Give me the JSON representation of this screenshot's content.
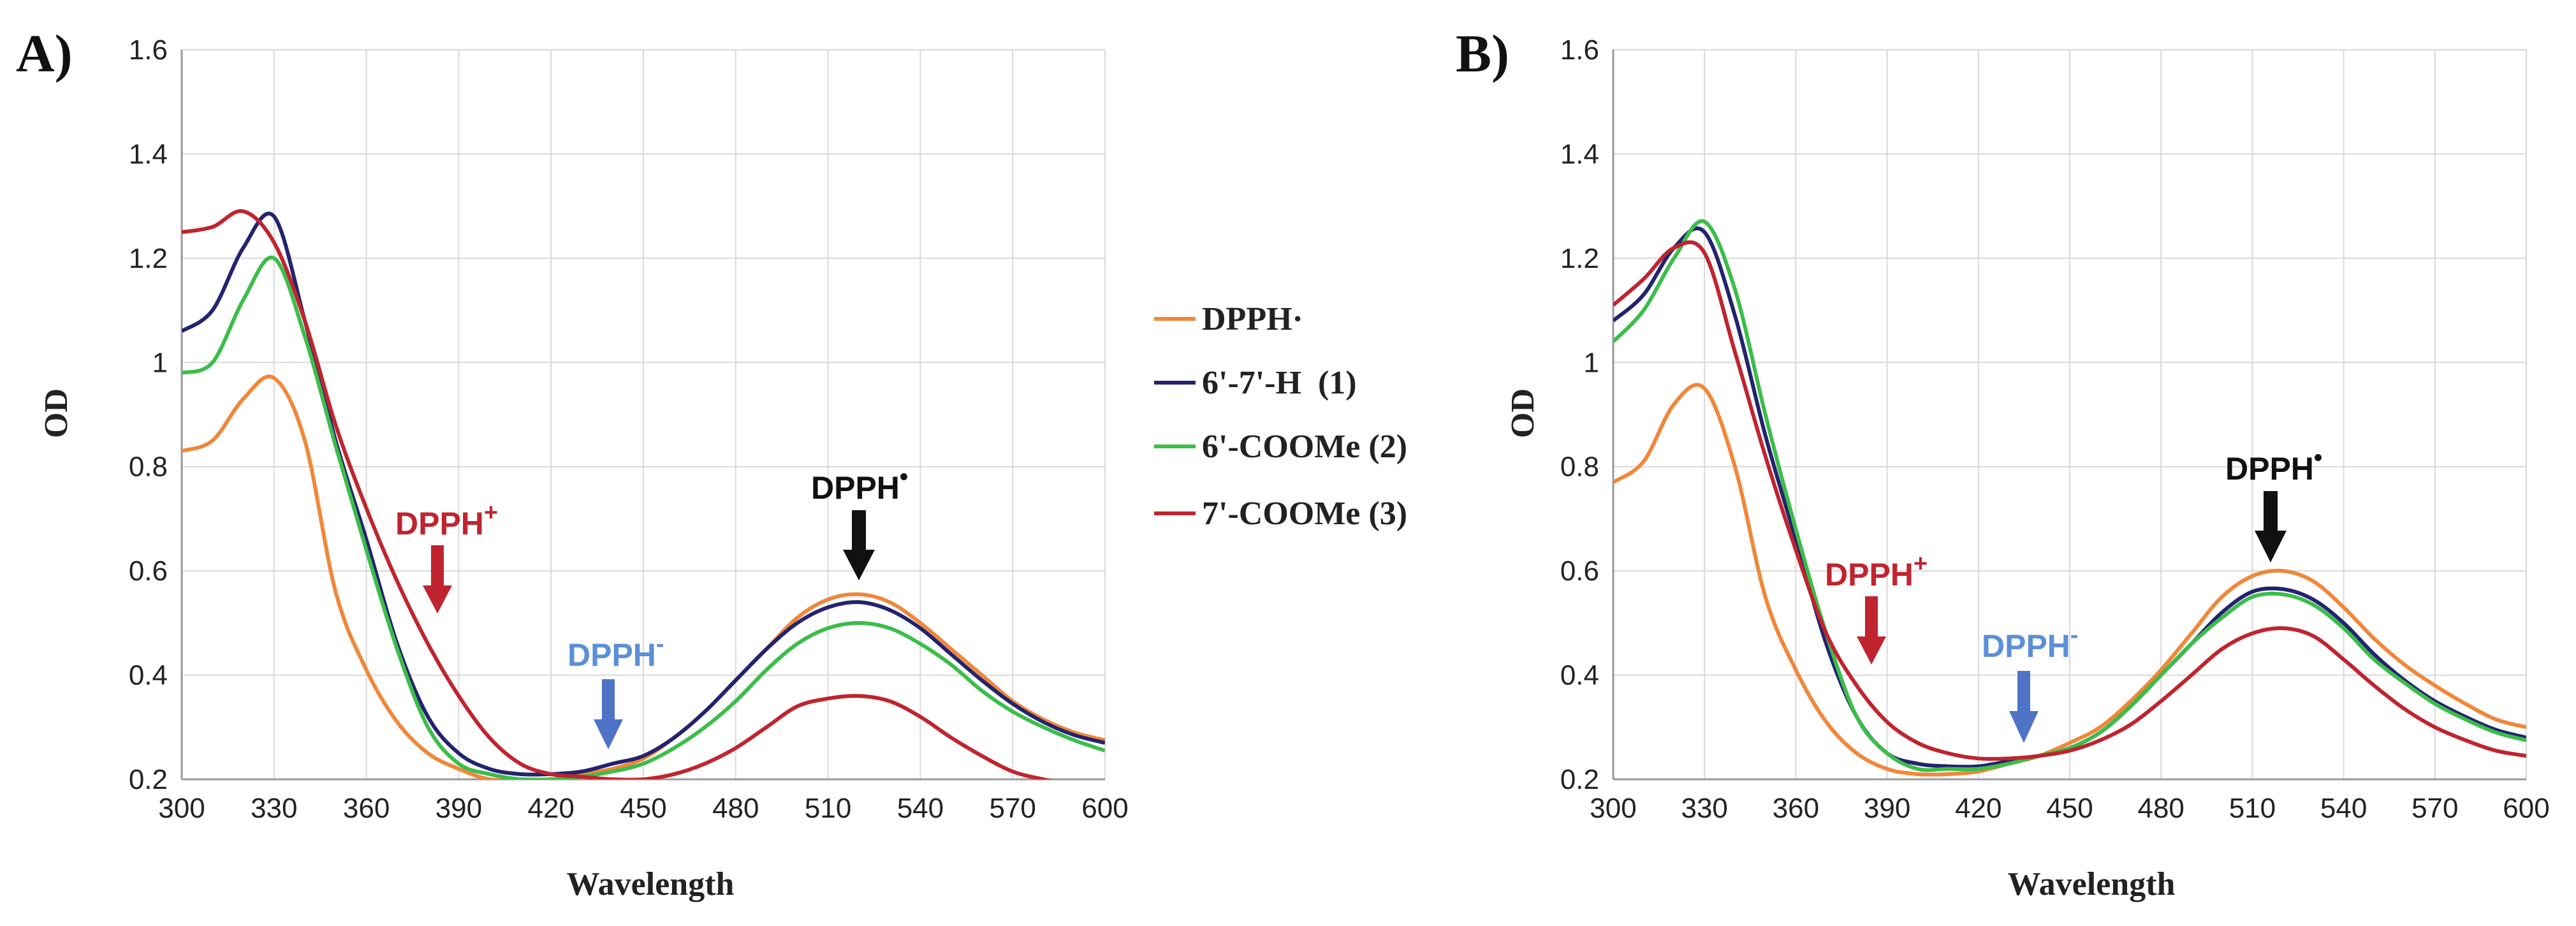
{
  "chart_data": [
    {
      "panel": "A)",
      "type": "line",
      "xlabel": "Wavelength",
      "ylabel": "OD",
      "xlim": [
        300,
        600
      ],
      "ylim": [
        0.2,
        1.6
      ],
      "xticks": [
        300,
        330,
        360,
        390,
        420,
        450,
        480,
        510,
        540,
        570,
        600
      ],
      "yticks": [
        0.2,
        0.4,
        0.6,
        0.8,
        1,
        1.2,
        1.4,
        1.6
      ],
      "ytick_labels": [
        "0.2",
        "0.4",
        "0.6",
        "0.8",
        "1",
        "1.2",
        "1.4",
        "1.6"
      ],
      "grid": true,
      "series": [
        {
          "name": "DPPH·",
          "color": "#f0873a",
          "x": [
            300,
            310,
            320,
            330,
            340,
            350,
            360,
            370,
            380,
            390,
            400,
            410,
            420,
            430,
            440,
            450,
            460,
            470,
            480,
            490,
            500,
            510,
            520,
            530,
            540,
            550,
            560,
            570,
            580,
            590,
            600
          ],
          "y": [
            0.83,
            0.85,
            0.93,
            0.97,
            0.85,
            0.56,
            0.41,
            0.31,
            0.25,
            0.22,
            0.2,
            0.2,
            0.2,
            0.21,
            0.22,
            0.24,
            0.28,
            0.33,
            0.39,
            0.45,
            0.51,
            0.545,
            0.555,
            0.54,
            0.5,
            0.45,
            0.4,
            0.35,
            0.315,
            0.29,
            0.275
          ]
        },
        {
          "name": "6'-7'-H (1)",
          "color": "#23236e",
          "x": [
            300,
            310,
            320,
            330,
            340,
            350,
            360,
            370,
            380,
            390,
            400,
            410,
            420,
            430,
            440,
            450,
            460,
            470,
            480,
            490,
            500,
            510,
            520,
            530,
            540,
            550,
            560,
            570,
            580,
            590,
            600
          ],
          "y": [
            1.06,
            1.1,
            1.22,
            1.28,
            1.08,
            0.85,
            0.66,
            0.46,
            0.32,
            0.25,
            0.22,
            0.21,
            0.21,
            0.215,
            0.23,
            0.245,
            0.28,
            0.33,
            0.39,
            0.45,
            0.5,
            0.53,
            0.54,
            0.525,
            0.49,
            0.44,
            0.39,
            0.345,
            0.31,
            0.285,
            0.27
          ]
        },
        {
          "name": "6'-COOMe (2)",
          "color": "#3cbd4a",
          "x": [
            300,
            310,
            320,
            330,
            340,
            350,
            360,
            370,
            380,
            390,
            400,
            410,
            420,
            430,
            440,
            450,
            460,
            470,
            480,
            490,
            500,
            510,
            520,
            530,
            540,
            550,
            560,
            570,
            580,
            590,
            600
          ],
          "y": [
            0.98,
            1.0,
            1.12,
            1.2,
            1.05,
            0.84,
            0.64,
            0.45,
            0.3,
            0.23,
            0.21,
            0.2,
            0.2,
            0.205,
            0.215,
            0.23,
            0.26,
            0.3,
            0.35,
            0.41,
            0.46,
            0.49,
            0.5,
            0.49,
            0.46,
            0.42,
            0.37,
            0.33,
            0.3,
            0.275,
            0.255
          ]
        },
        {
          "name": "7'-COOMe (3)",
          "color": "#c0242f",
          "x": [
            300,
            310,
            320,
            330,
            340,
            350,
            360,
            370,
            380,
            390,
            400,
            410,
            420,
            430,
            440,
            450,
            460,
            470,
            480,
            490,
            500,
            510,
            520,
            530,
            540,
            550,
            560,
            570,
            580,
            590,
            600
          ],
          "y": [
            1.25,
            1.26,
            1.29,
            1.23,
            1.08,
            0.88,
            0.72,
            0.58,
            0.46,
            0.36,
            0.28,
            0.23,
            0.21,
            0.205,
            0.2,
            0.2,
            0.21,
            0.23,
            0.26,
            0.3,
            0.34,
            0.355,
            0.36,
            0.35,
            0.32,
            0.28,
            0.245,
            0.215,
            0.2,
            0.19,
            0.185
          ]
        }
      ],
      "annotations": [
        {
          "label": "DPPH",
          "sup": "+",
          "color": "#c0242f"
        },
        {
          "label": "DPPH",
          "sup": "-",
          "color": "#5b8fd6"
        },
        {
          "label": "DPPH",
          "sup": "•",
          "color": "#111111"
        }
      ]
    },
    {
      "panel": "B)",
      "type": "line",
      "xlabel": "Wavelength",
      "ylabel": "OD",
      "xlim": [
        300,
        600
      ],
      "ylim": [
        0.2,
        1.6
      ],
      "xticks": [
        300,
        330,
        360,
        390,
        420,
        450,
        480,
        510,
        540,
        570,
        600
      ],
      "yticks": [
        0.2,
        0.4,
        0.6,
        0.8,
        1,
        1.2,
        1.4,
        1.6
      ],
      "ytick_labels": [
        "0.2",
        "0.4",
        "0.6",
        "0.8",
        "1",
        "1.2",
        "1.4",
        "1.6"
      ],
      "grid": true,
      "series": [
        {
          "name": "DPPH·",
          "color": "#f0873a",
          "x": [
            300,
            310,
            320,
            330,
            340,
            350,
            360,
            370,
            380,
            390,
            400,
            410,
            420,
            430,
            440,
            450,
            460,
            470,
            480,
            490,
            500,
            510,
            520,
            530,
            540,
            550,
            560,
            570,
            580,
            590,
            600
          ],
          "y": [
            0.77,
            0.81,
            0.92,
            0.95,
            0.8,
            0.55,
            0.41,
            0.31,
            0.25,
            0.22,
            0.21,
            0.21,
            0.215,
            0.23,
            0.245,
            0.27,
            0.3,
            0.35,
            0.41,
            0.48,
            0.55,
            0.59,
            0.6,
            0.58,
            0.53,
            0.47,
            0.42,
            0.38,
            0.345,
            0.315,
            0.3
          ]
        },
        {
          "name": "6'-7'-H (1)",
          "color": "#23236e",
          "x": [
            300,
            310,
            320,
            330,
            340,
            350,
            360,
            370,
            380,
            390,
            400,
            410,
            420,
            430,
            440,
            450,
            460,
            470,
            480,
            490,
            500,
            510,
            520,
            530,
            540,
            550,
            560,
            570,
            580,
            590,
            600
          ],
          "y": [
            1.08,
            1.13,
            1.22,
            1.25,
            1.09,
            0.86,
            0.66,
            0.46,
            0.32,
            0.25,
            0.23,
            0.225,
            0.225,
            0.235,
            0.245,
            0.26,
            0.29,
            0.34,
            0.4,
            0.46,
            0.52,
            0.56,
            0.565,
            0.545,
            0.5,
            0.44,
            0.39,
            0.35,
            0.32,
            0.295,
            0.28
          ]
        },
        {
          "name": "6'-COOMe (2)",
          "color": "#3cbd4a",
          "x": [
            300,
            310,
            320,
            330,
            340,
            350,
            360,
            370,
            380,
            390,
            400,
            410,
            420,
            430,
            440,
            450,
            460,
            470,
            480,
            490,
            500,
            510,
            520,
            530,
            540,
            550,
            560,
            570,
            580,
            590,
            600
          ],
          "y": [
            1.04,
            1.1,
            1.2,
            1.27,
            1.14,
            0.9,
            0.68,
            0.48,
            0.32,
            0.25,
            0.22,
            0.22,
            0.22,
            0.23,
            0.245,
            0.26,
            0.29,
            0.34,
            0.4,
            0.46,
            0.51,
            0.55,
            0.555,
            0.535,
            0.49,
            0.43,
            0.385,
            0.345,
            0.315,
            0.29,
            0.275
          ]
        },
        {
          "name": "7'-COOMe (3)",
          "color": "#c0242f",
          "x": [
            300,
            310,
            320,
            330,
            340,
            350,
            360,
            370,
            380,
            390,
            400,
            410,
            420,
            430,
            440,
            450,
            460,
            470,
            480,
            490,
            500,
            510,
            520,
            530,
            540,
            550,
            560,
            570,
            580,
            590,
            600
          ],
          "y": [
            1.11,
            1.16,
            1.22,
            1.21,
            1.02,
            0.82,
            0.64,
            0.48,
            0.38,
            0.31,
            0.27,
            0.25,
            0.24,
            0.24,
            0.245,
            0.255,
            0.275,
            0.305,
            0.35,
            0.4,
            0.45,
            0.48,
            0.49,
            0.475,
            0.43,
            0.38,
            0.335,
            0.3,
            0.275,
            0.255,
            0.245
          ]
        }
      ],
      "annotations": [
        {
          "label": "DPPH",
          "sup": "+",
          "color": "#c0242f"
        },
        {
          "label": "DPPH",
          "sup": "-",
          "color": "#5b8fd6"
        },
        {
          "label": "DPPH",
          "sup": "•",
          "color": "#111111"
        }
      ]
    }
  ],
  "legend": {
    "items": [
      {
        "label": "DPPH·",
        "color": "#f0873a"
      },
      {
        "label": "6'-7'-H  (1)",
        "color": "#23236e"
      },
      {
        "label": "6'-COOMe (2)",
        "color": "#3cbd4a"
      },
      {
        "label": "7'-COOMe (3)",
        "color": "#c0242f"
      }
    ]
  }
}
